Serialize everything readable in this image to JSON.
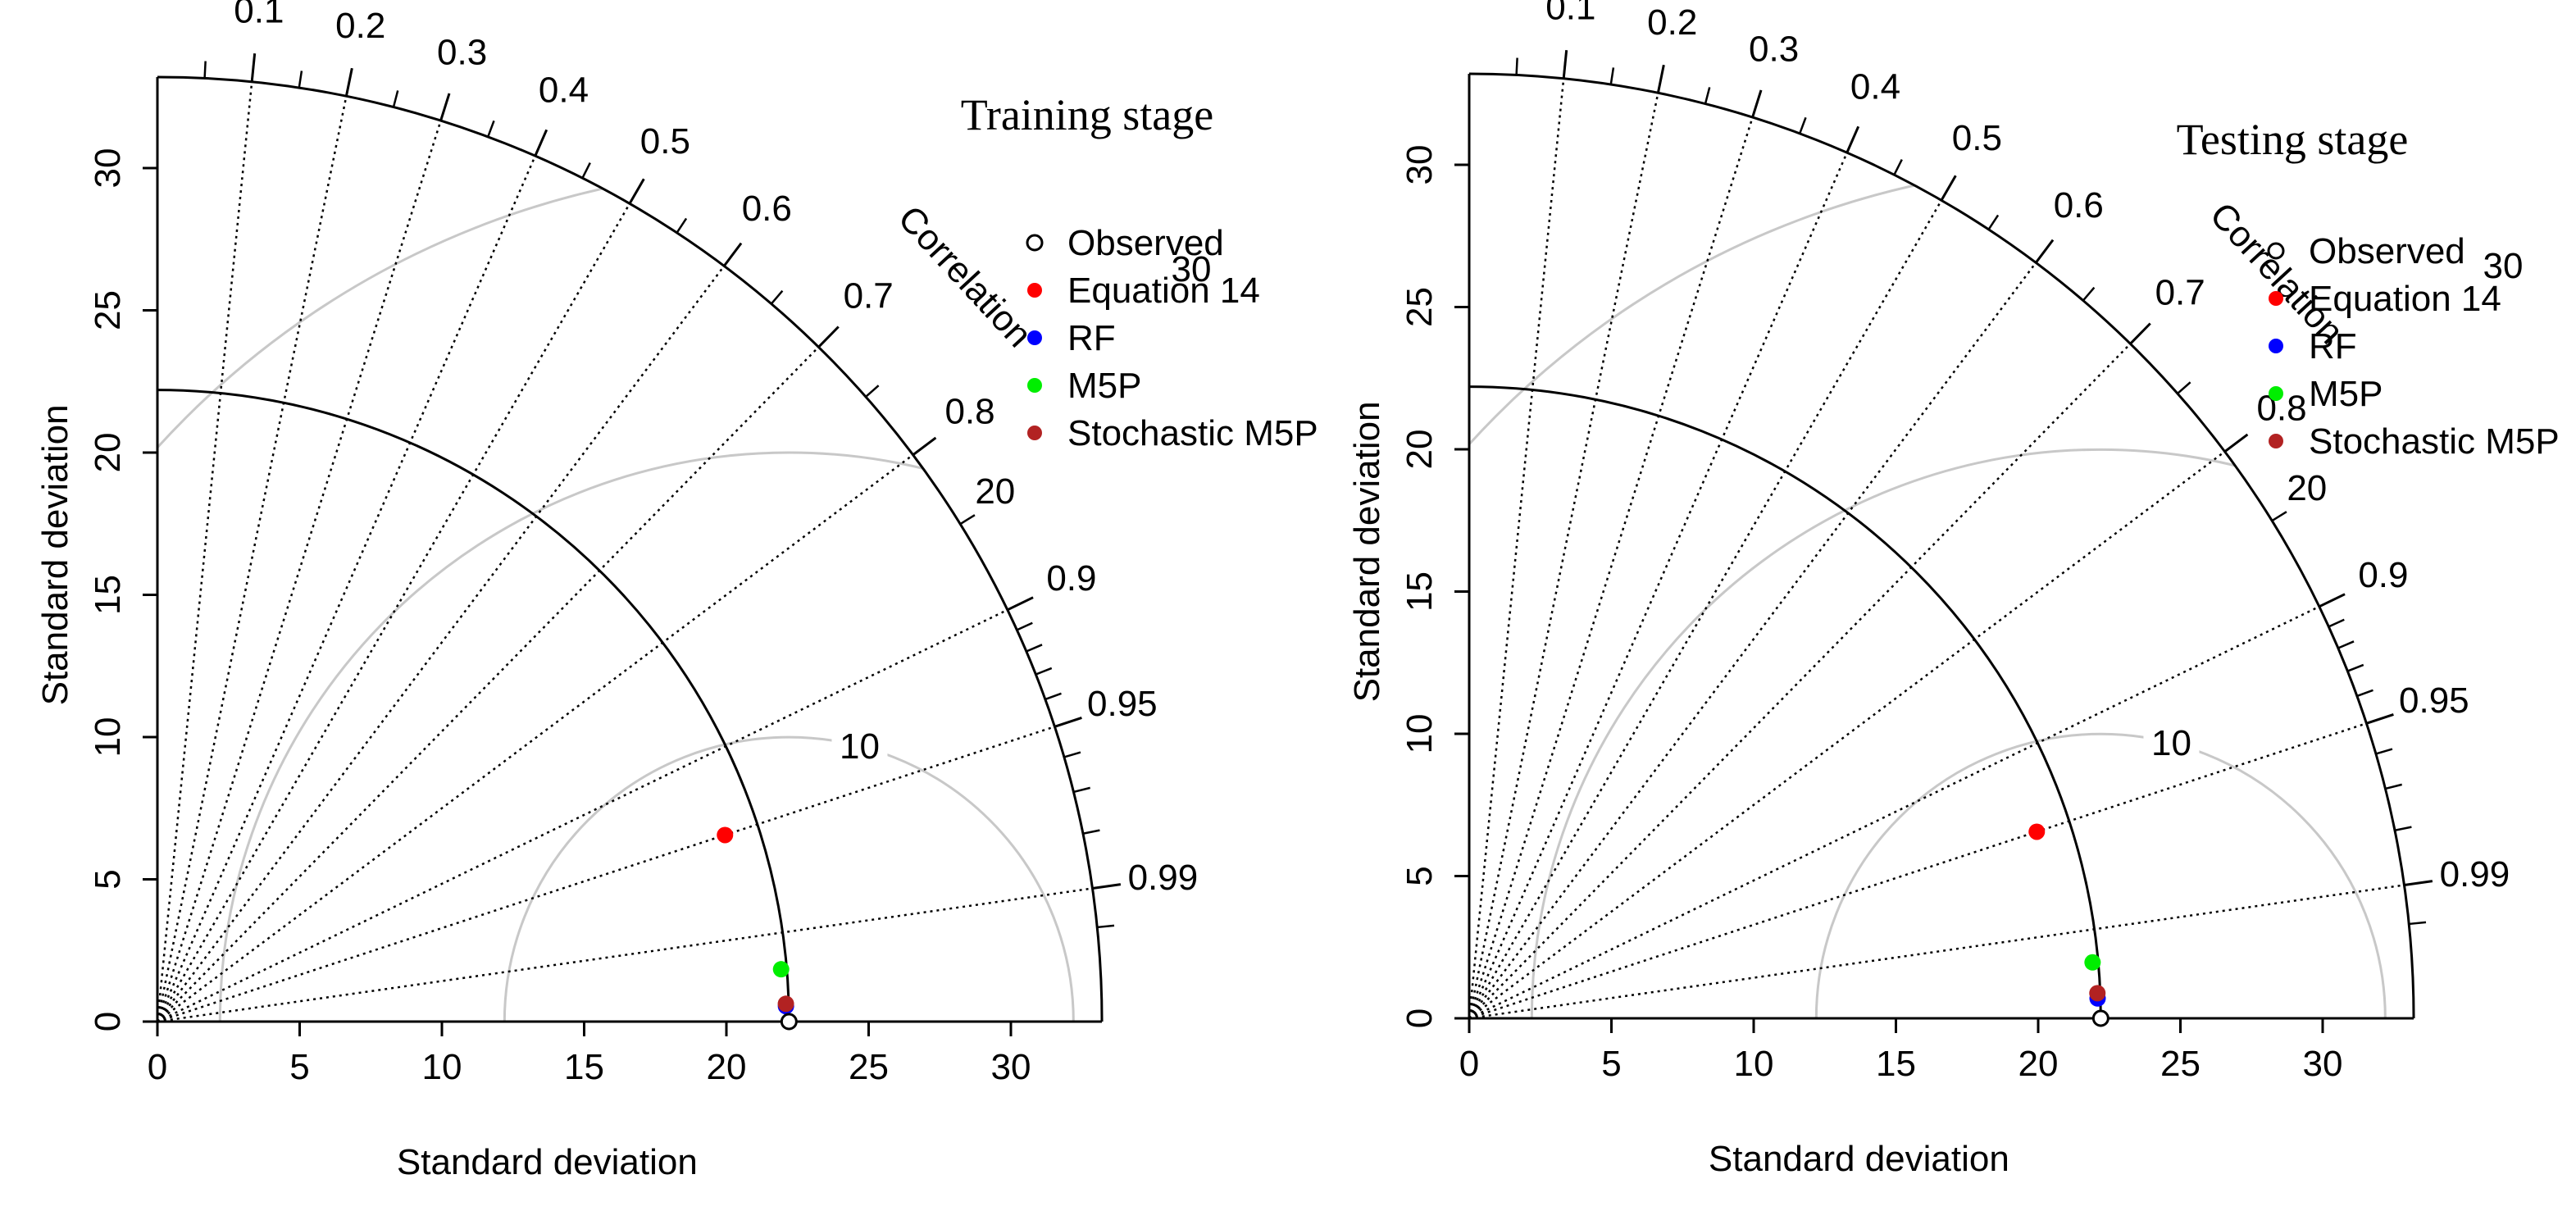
{
  "chart_data": [
    {
      "type": "taylor",
      "title": "Training stage",
      "xlabel": "Standard deviation",
      "ylabel": "Standard deviation",
      "correlation_label": "Correlation",
      "sd_max": 33.2,
      "ref_sd": 22.2,
      "x_ticks": [
        "0",
        "5",
        "10",
        "15",
        "20",
        "25",
        "30"
      ],
      "y_ticks": [
        "0",
        "5",
        "10",
        "15",
        "20",
        "25",
        "30"
      ],
      "correlation_ticks": [
        "0.1",
        "0.2",
        "0.3",
        "0.4",
        "0.5",
        "0.6",
        "0.7",
        "0.8",
        "0.9",
        "0.95",
        "0.99"
      ],
      "rmsd_contours": [
        "10",
        "20",
        "30"
      ],
      "legend": [
        "Observed",
        "Equation 14",
        "RF",
        "M5P",
        "Stochastic M5P"
      ],
      "series": [
        {
          "name": "Observed",
          "sd": 22.2,
          "correlation": 1.0,
          "color": "#000000",
          "marker": "open-circle"
        },
        {
          "name": "Equation 14",
          "sd": 21.0,
          "correlation": 0.95,
          "color": "#ff0000",
          "marker": "filled-circle"
        },
        {
          "name": "RF",
          "sd": 22.1,
          "correlation": 0.9997,
          "color": "#0000ff",
          "marker": "filled-circle"
        },
        {
          "name": "M5P",
          "sd": 22.0,
          "correlation": 0.9965,
          "color": "#00ee00",
          "marker": "filled-circle"
        },
        {
          "name": "Stochastic M5P",
          "sd": 22.1,
          "correlation": 0.9996,
          "color": "#b22222",
          "marker": "filled-circle"
        }
      ]
    },
    {
      "type": "taylor",
      "title": "Testing stage",
      "xlabel": "Standard deviation",
      "ylabel": "Standard deviation",
      "correlation_label": "Correlation",
      "sd_max": 33.2,
      "ref_sd": 22.2,
      "x_ticks": [
        "0",
        "5",
        "10",
        "15",
        "20",
        "25",
        "30"
      ],
      "y_ticks": [
        "0",
        "5",
        "10",
        "15",
        "20",
        "25",
        "30"
      ],
      "correlation_ticks": [
        "0.1",
        "0.2",
        "0.3",
        "0.4",
        "0.5",
        "0.6",
        "0.7",
        "0.8",
        "0.9",
        "0.95",
        "0.99"
      ],
      "rmsd_contours": [
        "10",
        "20",
        "30"
      ],
      "legend": [
        "Observed",
        "Equation 14",
        "RF",
        "M5P",
        "Stochastic M5P"
      ],
      "series": [
        {
          "name": "Observed",
          "sd": 22.2,
          "correlation": 1.0,
          "color": "#000000",
          "marker": "open-circle"
        },
        {
          "name": "Equation 14",
          "sd": 21.0,
          "correlation": 0.95,
          "color": "#ff0000",
          "marker": "filled-circle"
        },
        {
          "name": "RF",
          "sd": 22.1,
          "correlation": 0.9995,
          "color": "#0000ff",
          "marker": "filled-circle"
        },
        {
          "name": "M5P",
          "sd": 22.0,
          "correlation": 0.996,
          "color": "#00ee00",
          "marker": "filled-circle"
        },
        {
          "name": "Stochastic M5P",
          "sd": 22.1,
          "correlation": 0.9992,
          "color": "#b22222",
          "marker": "filled-circle"
        }
      ]
    }
  ]
}
